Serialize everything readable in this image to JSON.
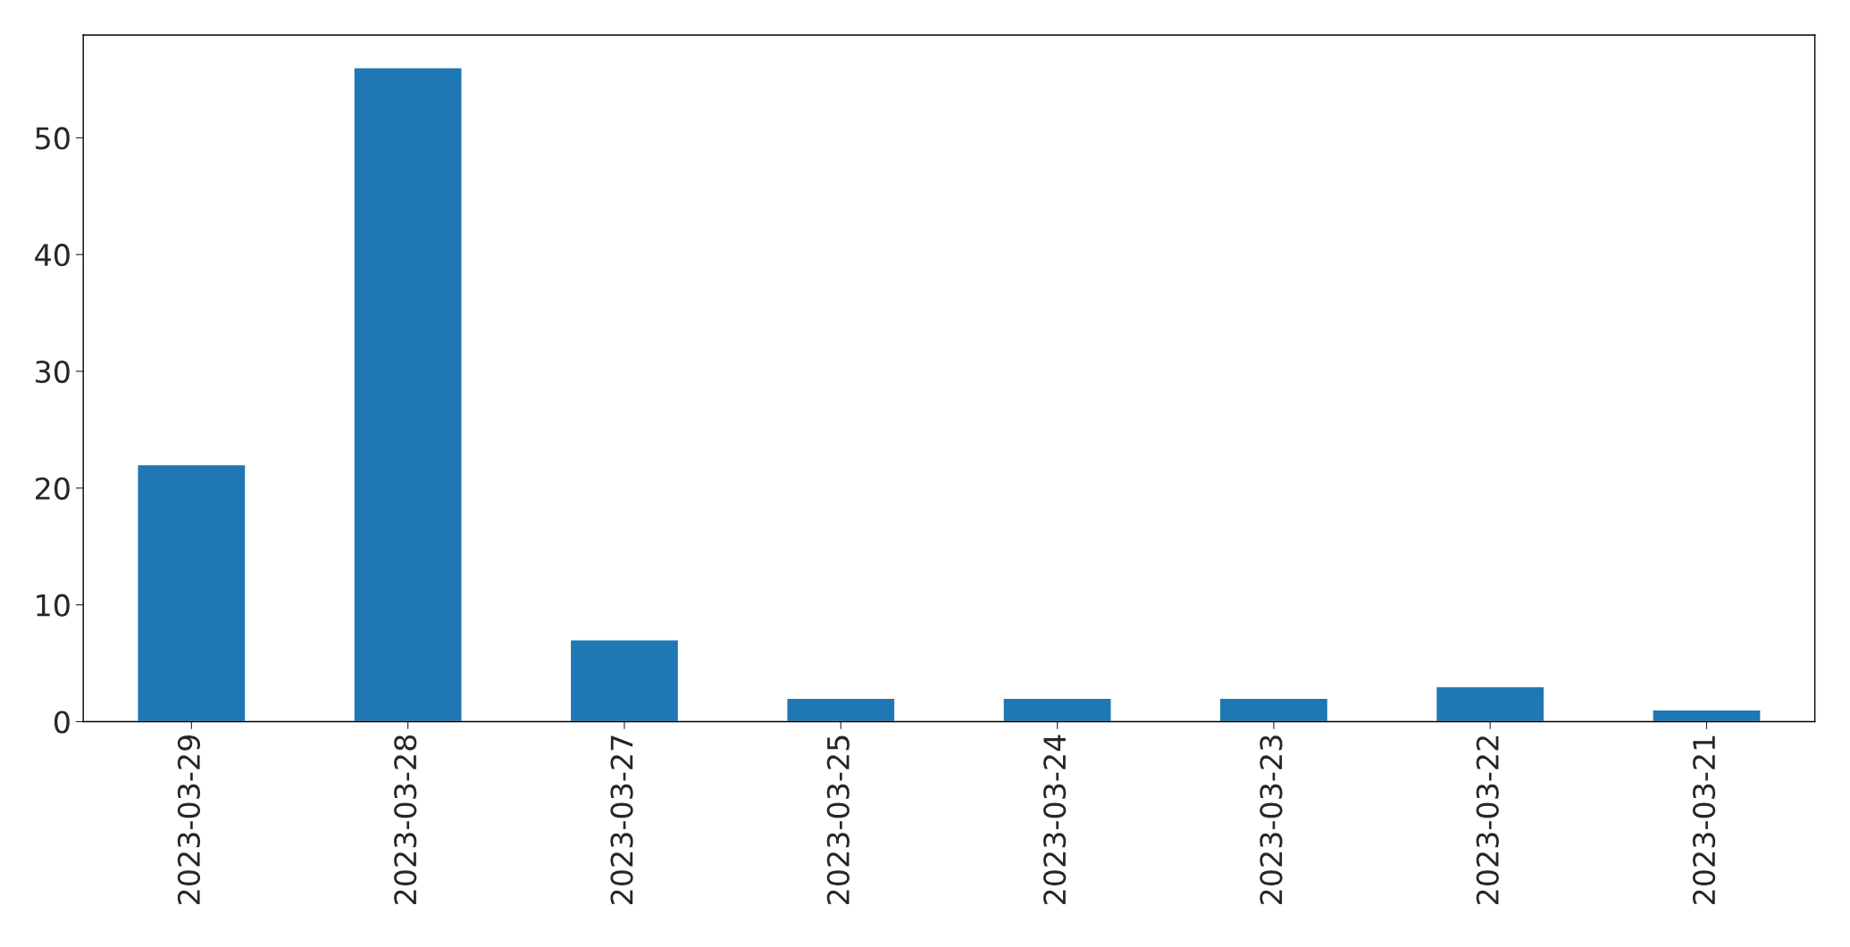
{
  "chart_data": {
    "type": "bar",
    "categories": [
      "2023-03-29",
      "2023-03-28",
      "2023-03-27",
      "2023-03-25",
      "2023-03-24",
      "2023-03-23",
      "2023-03-22",
      "2023-03-21"
    ],
    "values": [
      22,
      56,
      7,
      2,
      2,
      2,
      3,
      1
    ],
    "color": "#1f77b4",
    "ylim": [
      0,
      58.8
    ],
    "yticks": [
      0,
      10,
      20,
      30,
      40,
      50
    ],
    "grid": false,
    "legend": false
  }
}
